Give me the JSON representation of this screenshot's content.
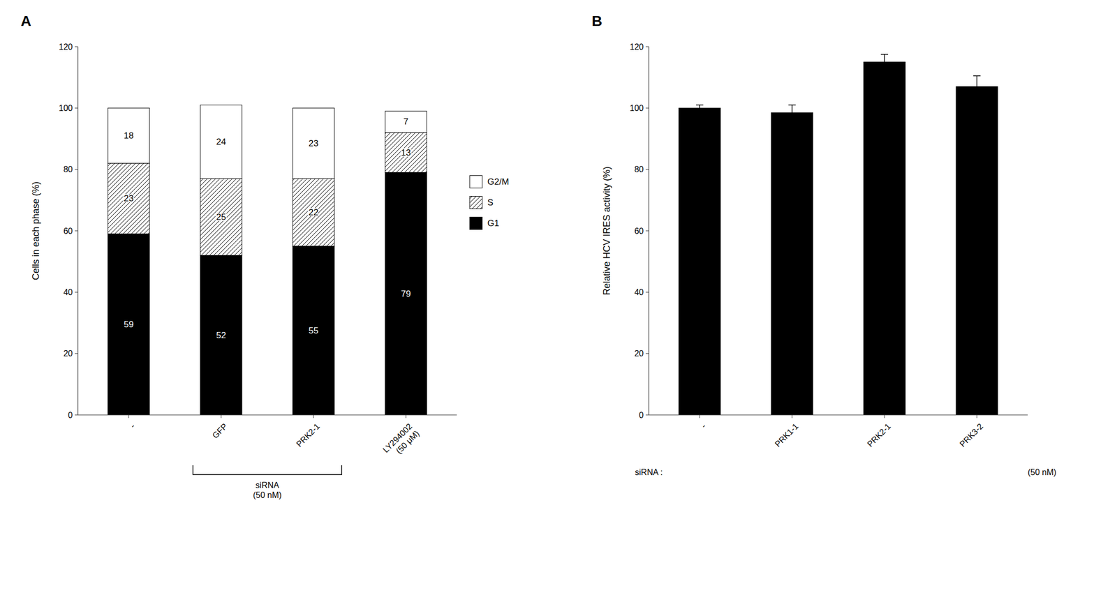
{
  "chart_data": [
    {
      "type": "bar",
      "title": "A",
      "categories": [
        "-",
        "GFP",
        "PRK2-1",
        "LY294002\n(50 μM)"
      ],
      "series": [
        {
          "name": "G1",
          "color": "#000000",
          "values": [
            59,
            52,
            55,
            79
          ]
        },
        {
          "name": "S",
          "color": "#ffffff",
          "values": [
            23,
            25,
            22,
            13
          ]
        },
        {
          "name": "G2/M",
          "color": "#ffffff",
          "values": [
            18,
            24,
            23,
            7
          ]
        }
      ],
      "stacked": true,
      "data_labels": true,
      "y_label": "Cells in each phase (%)",
      "ylim": [
        0,
        120
      ],
      "yticks": [
        0,
        20,
        40,
        60,
        80,
        100,
        120
      ],
      "legend": "right",
      "grid": false,
      "annotations": [
        "siRNA\n(50 nM)"
      ]
    },
    {
      "type": "bar",
      "title": "B",
      "categories": [
        "-",
        "PRK1-1",
        "PRK2-1",
        "PRK3-2"
      ],
      "values": [
        100.0,
        98.5,
        115.0,
        107.0
      ],
      "errors": [
        1.0,
        2.5,
        2.5,
        3.5
      ],
      "color": "#000000",
      "y_label": "Relative HCV IRES activity (%)",
      "ylim": [
        0,
        120
      ],
      "yticks": [
        0,
        20,
        40,
        60,
        80,
        100,
        120
      ],
      "grid": false,
      "annotations": [
        "siRNA :",
        "(50 nM)"
      ]
    }
  ]
}
